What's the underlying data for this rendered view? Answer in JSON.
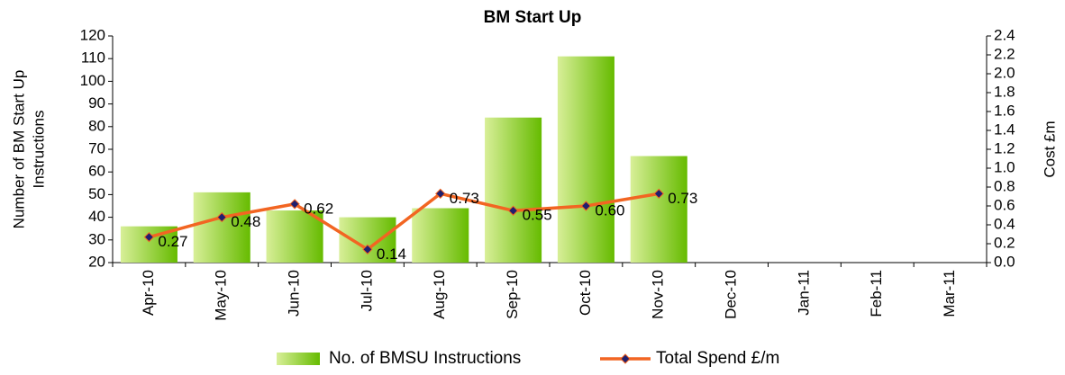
{
  "chart_data": {
    "type": "bar",
    "title": "BM Start Up",
    "ylabel": [
      "Number of BM Start Up",
      "Instructions"
    ],
    "y2label": "Cost £m",
    "categories": [
      "Apr-10",
      "May-10",
      "Jun-10",
      "Jul-10",
      "Aug-10",
      "Sep-10",
      "Oct-10",
      "Nov-10",
      "Dec-10",
      "Jan-11",
      "Feb-11",
      "Mar-11"
    ],
    "series": [
      {
        "name": "No. of BMSU Instructions",
        "type": "bar",
        "axis": "y",
        "color": "#6cc200",
        "values": [
          36,
          51,
          43,
          40,
          44,
          84,
          111,
          67,
          null,
          null,
          null,
          null
        ]
      },
      {
        "name": "Total Spend £/m",
        "type": "line",
        "axis": "y2",
        "color": "#f26522",
        "marker_color": "#1f1f6e",
        "values": [
          0.27,
          0.48,
          0.62,
          0.14,
          0.73,
          0.55,
          0.6,
          0.73,
          null,
          null,
          null,
          null
        ],
        "value_labels": [
          "0.27",
          "0.48",
          "0.62",
          "0.14",
          "0.73",
          "0.55",
          "0.60",
          "0.73",
          null,
          null,
          null,
          null
        ]
      }
    ],
    "ylim": [
      20,
      120
    ],
    "yticks": [
      20,
      30,
      40,
      50,
      60,
      70,
      80,
      90,
      100,
      110,
      120
    ],
    "y2lim": [
      0,
      2.4
    ],
    "y2ticks": [
      {
        "value": 0,
        "label": "0.0"
      },
      0.2,
      0.4,
      0.6,
      0.8,
      {
        "value": 1,
        "label": "1.0"
      },
      1.2,
      1.4,
      1.6,
      1.8,
      {
        "value": 2,
        "label": "2.0"
      },
      2.2,
      2.4
    ],
    "legend": "bottom"
  }
}
